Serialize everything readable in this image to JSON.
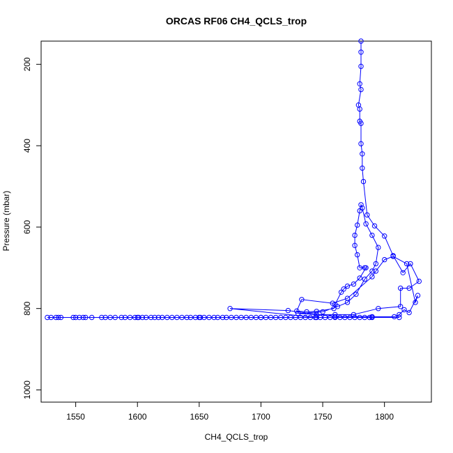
{
  "chart_data": {
    "type": "scatter",
    "title": "ORCAS RF06 CH4_QCLS_trop",
    "xlabel": "CH4_QCLS_trop",
    "ylabel": "Pressure (mbar)",
    "xlim": [
      1522,
      1838
    ],
    "ylim": [
      1030,
      143
    ],
    "y_reversed": true,
    "x_ticks": [
      1550,
      1600,
      1650,
      1700,
      1750,
      1800
    ],
    "y_ticks": [
      200,
      400,
      600,
      800,
      1000
    ],
    "grid": false,
    "color": "#0000ff",
    "series": [
      {
        "points": [
          [
            1781,
            143
          ],
          [
            1781,
            170
          ],
          [
            1781,
            205
          ],
          [
            1780,
            248
          ],
          [
            1781,
            262
          ],
          [
            1779,
            300
          ],
          [
            1780,
            310
          ],
          [
            1780,
            340
          ],
          [
            1781,
            345
          ],
          [
            1781,
            395
          ],
          [
            1782,
            420
          ],
          [
            1782,
            455
          ],
          [
            1783,
            488
          ],
          [
            1786,
            570
          ],
          [
            1792,
            597
          ],
          [
            1800,
            622
          ],
          [
            1807,
            670
          ],
          [
            1815,
            712
          ],
          [
            1821,
            690
          ],
          [
            1828,
            733
          ],
          [
            1820,
            750
          ],
          [
            1813,
            750
          ],
          [
            1813,
            795
          ],
          [
            1795,
            800
          ],
          [
            1775,
            815
          ],
          [
            1760,
            815
          ],
          [
            1745,
            815
          ],
          [
            1730,
            812
          ],
          [
            1750,
            808
          ],
          [
            1762,
            795
          ],
          [
            1770,
            785
          ],
          [
            1777,
            765
          ],
          [
            1784,
            728
          ],
          [
            1790,
            708
          ],
          [
            1793,
            690
          ],
          [
            1795,
            650
          ],
          [
            1790,
            620
          ],
          [
            1785,
            592
          ],
          [
            1782,
            553
          ],
          [
            1781,
            545
          ],
          [
            1780,
            560
          ],
          [
            1778,
            595
          ],
          [
            1776,
            620
          ],
          [
            1776,
            645
          ],
          [
            1778,
            668
          ],
          [
            1780,
            700
          ],
          [
            1784,
            700
          ],
          [
            1785,
            700
          ],
          [
            1780,
            725
          ],
          [
            1775,
            740
          ],
          [
            1770,
            745
          ],
          [
            1767,
            752
          ],
          [
            1765,
            760
          ],
          [
            1760,
            790
          ],
          [
            1759,
            800
          ],
          [
            1745,
            807
          ],
          [
            1737,
            808
          ],
          [
            1729,
            806
          ],
          [
            1733,
            778
          ],
          [
            1758,
            787
          ],
          [
            1770,
            775
          ],
          [
            1790,
            722
          ],
          [
            1793,
            708
          ],
          [
            1800,
            680
          ],
          [
            1807,
            672
          ],
          [
            1818,
            690
          ],
          [
            1825,
            785
          ],
          [
            1827,
            768
          ],
          [
            1820,
            810
          ],
          [
            1816,
            803
          ],
          [
            1812,
            815
          ],
          [
            1808,
            820
          ],
          [
            1790,
            820
          ],
          [
            1760,
            820
          ],
          [
            1722,
            805
          ],
          [
            1675,
            800
          ],
          [
            1745,
            822
          ],
          [
            1700,
            822
          ],
          [
            1650,
            822
          ],
          [
            1600,
            822
          ],
          [
            1550,
            822
          ],
          [
            1527,
            822
          ],
          [
            1530,
            822
          ],
          [
            1534,
            822
          ],
          [
            1536,
            822
          ],
          [
            1538,
            822
          ],
          [
            1548,
            822
          ],
          [
            1553,
            822
          ],
          [
            1556,
            822
          ],
          [
            1558,
            822
          ],
          [
            1563,
            822
          ],
          [
            1571,
            822
          ],
          [
            1574,
            822
          ],
          [
            1578,
            822
          ],
          [
            1582,
            822
          ],
          [
            1587,
            822
          ],
          [
            1590,
            822
          ],
          [
            1594,
            822
          ],
          [
            1598,
            822
          ],
          [
            1601,
            822
          ],
          [
            1604,
            822
          ],
          [
            1607,
            822
          ],
          [
            1611,
            822
          ],
          [
            1614,
            822
          ],
          [
            1617,
            822
          ],
          [
            1620,
            822
          ],
          [
            1624,
            822
          ],
          [
            1628,
            822
          ],
          [
            1632,
            822
          ],
          [
            1636,
            822
          ],
          [
            1640,
            822
          ],
          [
            1643,
            822
          ],
          [
            1647,
            822
          ],
          [
            1651,
            822
          ],
          [
            1654,
            822
          ],
          [
            1658,
            822
          ],
          [
            1662,
            822
          ],
          [
            1665,
            822
          ],
          [
            1669,
            822
          ],
          [
            1672,
            822
          ],
          [
            1676,
            822
          ],
          [
            1680,
            822
          ],
          [
            1684,
            822
          ],
          [
            1688,
            822
          ],
          [
            1692,
            822
          ],
          [
            1696,
            822
          ],
          [
            1700,
            822
          ],
          [
            1704,
            822
          ],
          [
            1708,
            822
          ],
          [
            1712,
            822
          ],
          [
            1716,
            822
          ],
          [
            1720,
            822
          ],
          [
            1724,
            822
          ],
          [
            1728,
            822
          ],
          [
            1732,
            822
          ],
          [
            1736,
            822
          ],
          [
            1740,
            822
          ],
          [
            1744,
            822
          ],
          [
            1748,
            822
          ],
          [
            1752,
            822
          ],
          [
            1756,
            822
          ],
          [
            1760,
            822
          ],
          [
            1764,
            822
          ],
          [
            1768,
            822
          ],
          [
            1772,
            822
          ],
          [
            1776,
            822
          ],
          [
            1780,
            822
          ],
          [
            1784,
            822
          ],
          [
            1788,
            822
          ],
          [
            1790,
            822
          ],
          [
            1812,
            822
          ]
        ]
      }
    ]
  }
}
